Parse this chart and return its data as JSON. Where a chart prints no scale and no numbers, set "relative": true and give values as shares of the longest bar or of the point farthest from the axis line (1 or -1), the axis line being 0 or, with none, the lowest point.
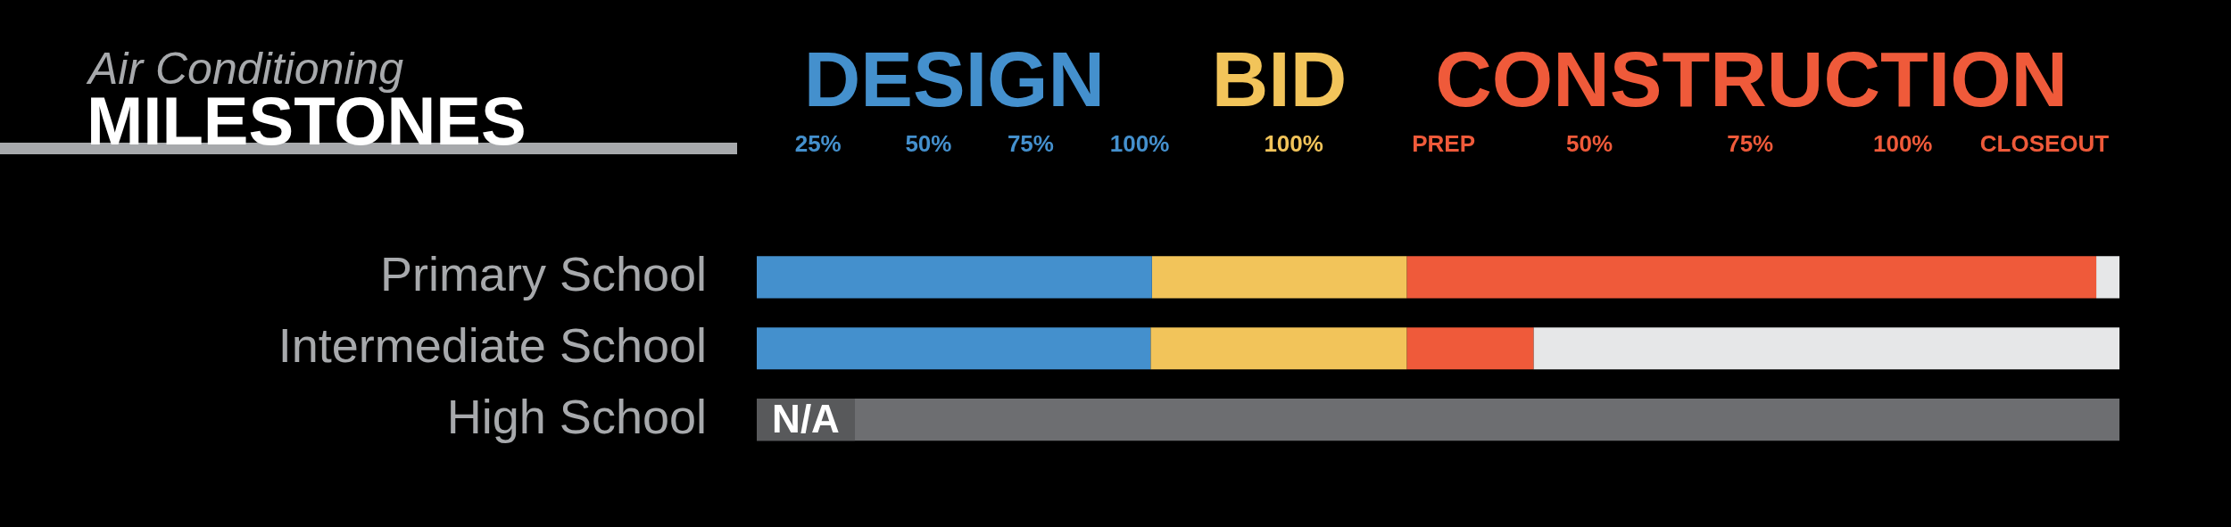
{
  "chart_data": {
    "type": "bar",
    "orientation": "horizontal",
    "stacked": true,
    "relative": true,
    "title": "MILESTONES",
    "subtitle": "Air Conditioning",
    "categories": [
      "Primary School",
      "Intermediate School",
      "High School"
    ],
    "series": [
      {
        "name": "DESIGN",
        "color": "#4490cd",
        "values": [
          0.29,
          0.289,
          null
        ]
      },
      {
        "name": "BID",
        "color": "#f2c45a",
        "values": [
          0.187,
          0.188,
          null
        ]
      },
      {
        "name": "CONSTRUCTION",
        "color": "#ef5a3a",
        "values": [
          0.506,
          0.093,
          null
        ]
      },
      {
        "color": "#e6e7e8",
        "values": [
          0.017,
          0.43,
          null
        ]
      },
      {
        "name": "N/A",
        "color": "#6d6e71",
        "values": [
          null,
          null,
          1
        ]
      }
    ],
    "annotations": [
      "25%",
      "50%",
      "75%",
      "100%",
      "100%",
      "PREP",
      "50%",
      "75%",
      "100%",
      "CLOSEOUT"
    ]
  }
}
